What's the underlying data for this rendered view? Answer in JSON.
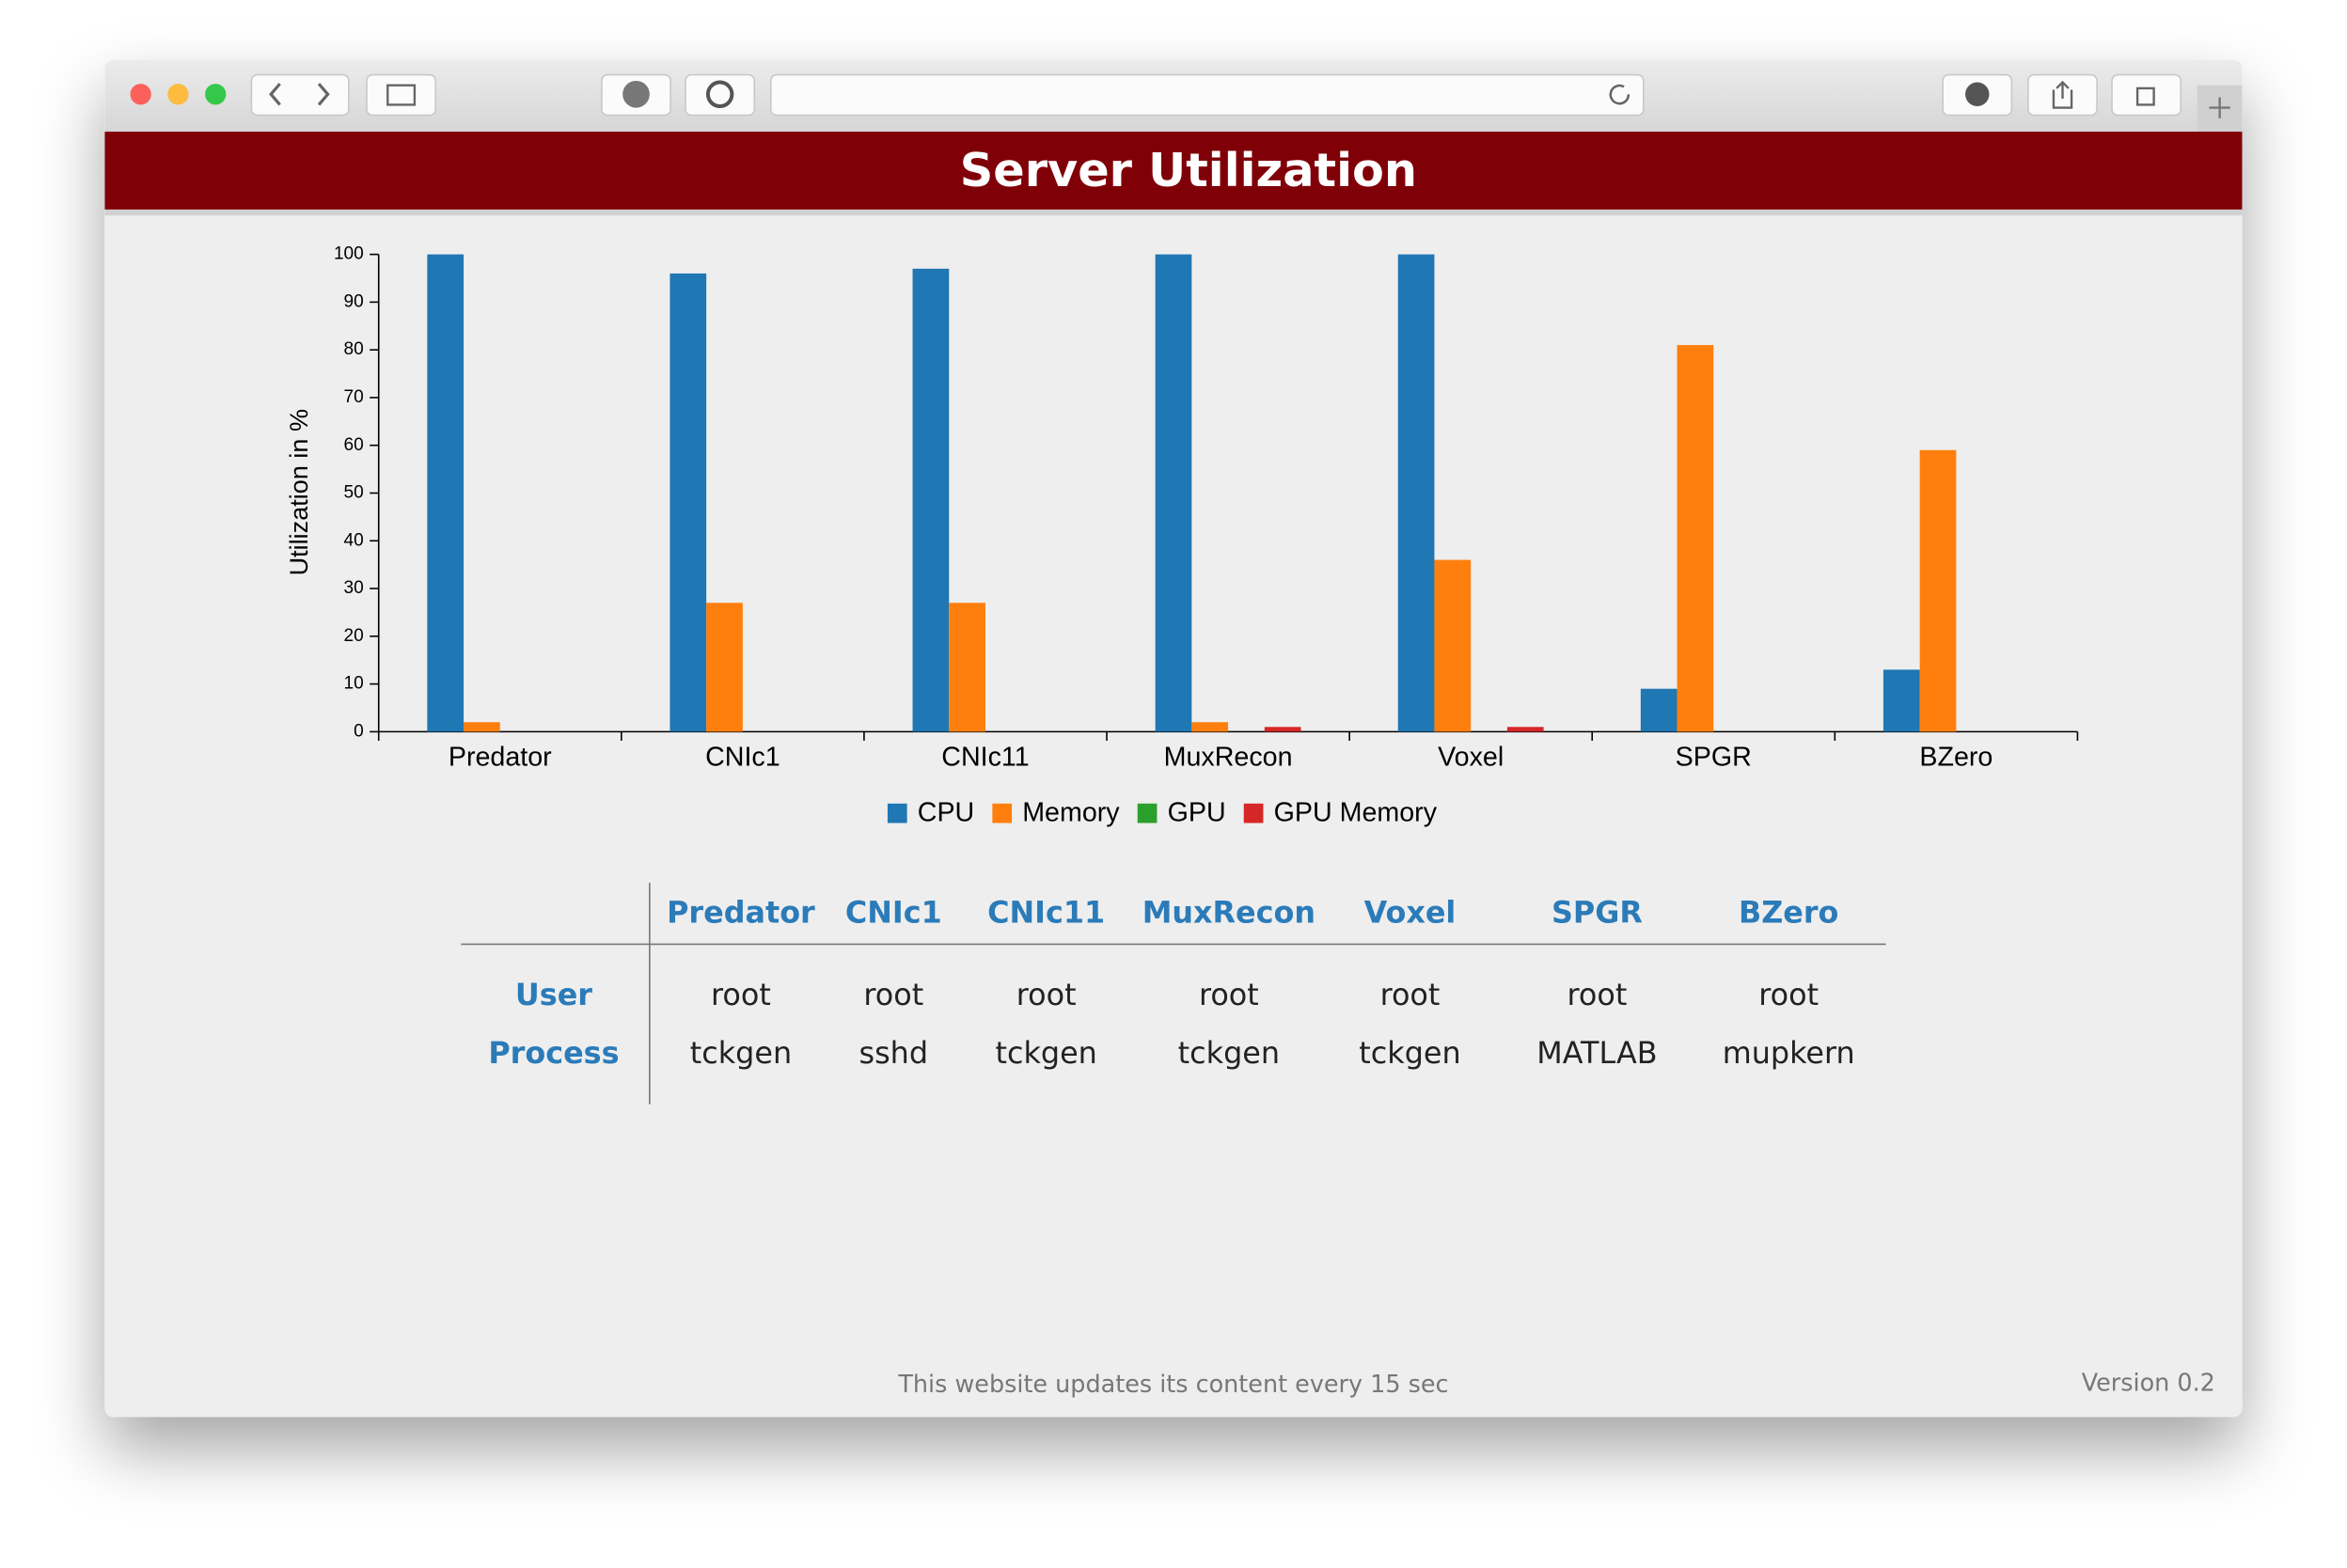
{
  "header": {
    "title": "Server Utilization"
  },
  "chart_data": {
    "type": "bar",
    "ylabel": "Utilization in %",
    "categories": [
      "Predator",
      "CNIc1",
      "CNIc11",
      "MuxRecon",
      "Voxel",
      "SPGR",
      "BZero"
    ],
    "series": [
      {
        "name": "CPU",
        "color": "#1f77b4",
        "values": [
          100,
          96,
          97,
          100,
          100,
          9,
          13
        ]
      },
      {
        "name": "Memory",
        "color": "#ff7f0e",
        "values": [
          2,
          27,
          27,
          2,
          36,
          81,
          59
        ]
      },
      {
        "name": "GPU",
        "color": "#2ca02c",
        "values": [
          0,
          0,
          0,
          0,
          0,
          0,
          0
        ]
      },
      {
        "name": "GPU Memory",
        "color": "#d62728",
        "values": [
          0,
          0,
          0,
          1,
          1,
          0,
          0
        ]
      }
    ],
    "ylim": [
      0,
      100
    ],
    "yticks": [
      0,
      10,
      20,
      30,
      40,
      50,
      60,
      70,
      80,
      90,
      100
    ],
    "legend": "bottom"
  },
  "table": {
    "columns": [
      "Predator",
      "CNIc1",
      "CNIc11",
      "MuxRecon",
      "Voxel",
      "SPGR",
      "BZero"
    ],
    "rows": [
      {
        "label": "User",
        "cells": [
          "root",
          "root",
          "root",
          "root",
          "root",
          "root",
          "root"
        ]
      },
      {
        "label": "Process",
        "cells": [
          "tckgen",
          "sshd",
          "tckgen",
          "tckgen",
          "tckgen",
          "MATLAB",
          "mupkern"
        ]
      }
    ]
  },
  "footer": {
    "note": "This website updates its content every 15 sec",
    "version": "Version 0.2"
  }
}
